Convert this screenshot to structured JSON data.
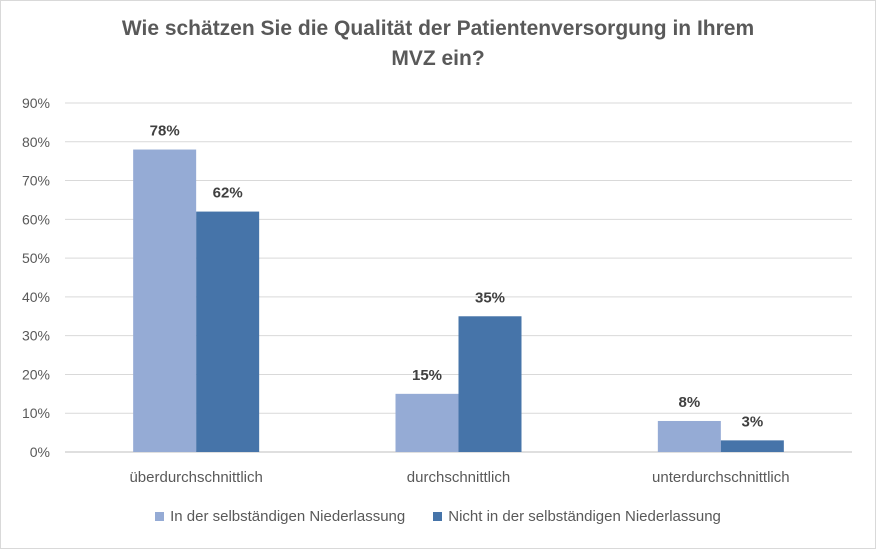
{
  "chart_data": {
    "type": "bar",
    "title_line1": "Wie schätzen Sie die Qualität der Patientenversorgung in Ihrem",
    "title_line2": "MVZ ein?",
    "categories": [
      "überdurchschnittlich",
      "durchschnittlich",
      "unterdurchschnittlich"
    ],
    "series": [
      {
        "name": "In der selbständigen Niederlassung",
        "values": [
          78,
          15,
          8
        ],
        "labels": [
          "78%",
          "15%",
          "8%"
        ],
        "color": "#95abd5"
      },
      {
        "name": "Nicht in der selbständigen Niederlassung",
        "values": [
          62,
          35,
          3
        ],
        "labels": [
          "62%",
          "35%",
          "3%"
        ],
        "color": "#4674a9"
      }
    ],
    "ylim": [
      0,
      90
    ],
    "yticks": [
      "0%",
      "10%",
      "20%",
      "30%",
      "40%",
      "50%",
      "60%",
      "70%",
      "80%",
      "90%"
    ],
    "grid": true,
    "legend_position": "bottom"
  }
}
